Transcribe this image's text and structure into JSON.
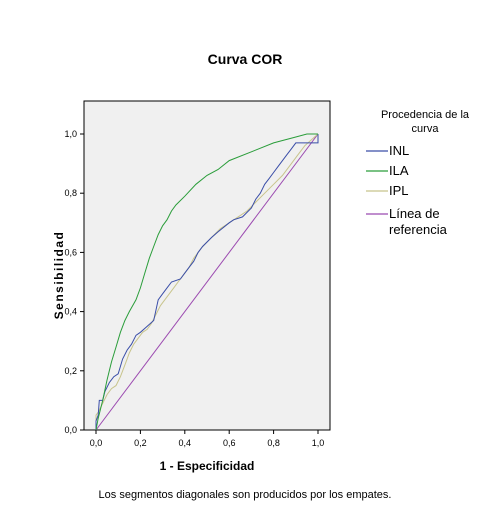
{
  "chart_data": {
    "type": "line",
    "title": "Curva COR",
    "xlabel": "1 - Especificidad",
    "ylabel": "Sensibilidad",
    "xlim": [
      0,
      1
    ],
    "ylim": [
      0,
      1
    ],
    "x_ticks": [
      "0,0",
      "0,2",
      "0,4",
      "0,6",
      "0,8",
      "1,0"
    ],
    "y_ticks": [
      "0,0",
      "0,2",
      "0,4",
      "0,6",
      "0,8",
      "1,0"
    ],
    "grid": false,
    "background": "#f0f0f0",
    "legend": {
      "placement": "right",
      "title_line1": "Procedencia de la",
      "title_line2": "curva"
    },
    "series": [
      {
        "name": "INL",
        "color": "#3a4ea8",
        "points": [
          [
            0,
            0
          ],
          [
            0,
            0.03
          ],
          [
            0.01,
            0.05
          ],
          [
            0.015,
            0.1
          ],
          [
            0.03,
            0.1
          ],
          [
            0.04,
            0.13
          ],
          [
            0.06,
            0.16
          ],
          [
            0.08,
            0.18
          ],
          [
            0.1,
            0.19
          ],
          [
            0.12,
            0.24
          ],
          [
            0.14,
            0.27
          ],
          [
            0.16,
            0.29
          ],
          [
            0.18,
            0.32
          ],
          [
            0.2,
            0.33
          ],
          [
            0.23,
            0.35
          ],
          [
            0.26,
            0.37
          ],
          [
            0.28,
            0.44
          ],
          [
            0.3,
            0.46
          ],
          [
            0.32,
            0.48
          ],
          [
            0.34,
            0.5
          ],
          [
            0.38,
            0.51
          ],
          [
            0.4,
            0.53
          ],
          [
            0.42,
            0.55
          ],
          [
            0.44,
            0.57
          ],
          [
            0.46,
            0.6
          ],
          [
            0.48,
            0.62
          ],
          [
            0.52,
            0.65
          ],
          [
            0.55,
            0.67
          ],
          [
            0.6,
            0.7
          ],
          [
            0.62,
            0.71
          ],
          [
            0.66,
            0.72
          ],
          [
            0.7,
            0.75
          ],
          [
            0.72,
            0.78
          ],
          [
            0.74,
            0.8
          ],
          [
            0.76,
            0.83
          ],
          [
            0.78,
            0.85
          ],
          [
            0.8,
            0.87
          ],
          [
            0.82,
            0.89
          ],
          [
            0.84,
            0.91
          ],
          [
            0.86,
            0.93
          ],
          [
            0.88,
            0.95
          ],
          [
            0.9,
            0.97
          ],
          [
            0.94,
            0.97
          ],
          [
            1.0,
            0.97
          ],
          [
            1.0,
            1.0
          ]
        ]
      },
      {
        "name": "ILA",
        "color": "#2a9d3a",
        "points": [
          [
            0,
            0
          ],
          [
            0.01,
            0.04
          ],
          [
            0.03,
            0.1
          ],
          [
            0.05,
            0.17
          ],
          [
            0.07,
            0.23
          ],
          [
            0.09,
            0.28
          ],
          [
            0.11,
            0.33
          ],
          [
            0.13,
            0.37
          ],
          [
            0.15,
            0.4
          ],
          [
            0.18,
            0.44
          ],
          [
            0.2,
            0.48
          ],
          [
            0.22,
            0.53
          ],
          [
            0.24,
            0.58
          ],
          [
            0.26,
            0.62
          ],
          [
            0.28,
            0.66
          ],
          [
            0.3,
            0.69
          ],
          [
            0.32,
            0.71
          ],
          [
            0.34,
            0.74
          ],
          [
            0.36,
            0.76
          ],
          [
            0.4,
            0.79
          ],
          [
            0.45,
            0.83
          ],
          [
            0.5,
            0.86
          ],
          [
            0.55,
            0.88
          ],
          [
            0.6,
            0.91
          ],
          [
            0.7,
            0.94
          ],
          [
            0.8,
            0.97
          ],
          [
            0.9,
            0.99
          ],
          [
            0.95,
            1.0
          ],
          [
            1.0,
            1.0
          ]
        ]
      },
      {
        "name": "IPL",
        "color": "#c8c48c",
        "points": [
          [
            0,
            0
          ],
          [
            0,
            0.05
          ],
          [
            0.01,
            0.06
          ],
          [
            0.03,
            0.09
          ],
          [
            0.05,
            0.12
          ],
          [
            0.07,
            0.14
          ],
          [
            0.09,
            0.15
          ],
          [
            0.11,
            0.18
          ],
          [
            0.13,
            0.22
          ],
          [
            0.15,
            0.26
          ],
          [
            0.17,
            0.29
          ],
          [
            0.19,
            0.31
          ],
          [
            0.21,
            0.33
          ],
          [
            0.23,
            0.34
          ],
          [
            0.25,
            0.36
          ],
          [
            0.27,
            0.39
          ],
          [
            0.29,
            0.42
          ],
          [
            0.31,
            0.44
          ],
          [
            0.33,
            0.46
          ],
          [
            0.35,
            0.48
          ],
          [
            0.37,
            0.5
          ],
          [
            0.4,
            0.53
          ],
          [
            0.42,
            0.55
          ],
          [
            0.44,
            0.58
          ],
          [
            0.46,
            0.6
          ],
          [
            0.48,
            0.62
          ],
          [
            0.52,
            0.65
          ],
          [
            0.56,
            0.68
          ],
          [
            0.6,
            0.7
          ],
          [
            0.64,
            0.72
          ],
          [
            0.68,
            0.74
          ],
          [
            0.72,
            0.77
          ],
          [
            0.76,
            0.8
          ],
          [
            0.8,
            0.83
          ],
          [
            0.84,
            0.86
          ],
          [
            0.88,
            0.9
          ],
          [
            0.91,
            0.93
          ],
          [
            0.94,
            0.96
          ],
          [
            0.97,
            0.98
          ],
          [
            1.0,
            1.0
          ]
        ]
      },
      {
        "name": "Línea de referencia",
        "legend_line1": "Línea de",
        "legend_line2": "referencia",
        "color": "#9b4ab0",
        "points": [
          [
            0,
            0
          ],
          [
            1,
            1
          ]
        ]
      }
    ]
  },
  "footnote": "Los segmentos diagonales son producidos por los empates."
}
